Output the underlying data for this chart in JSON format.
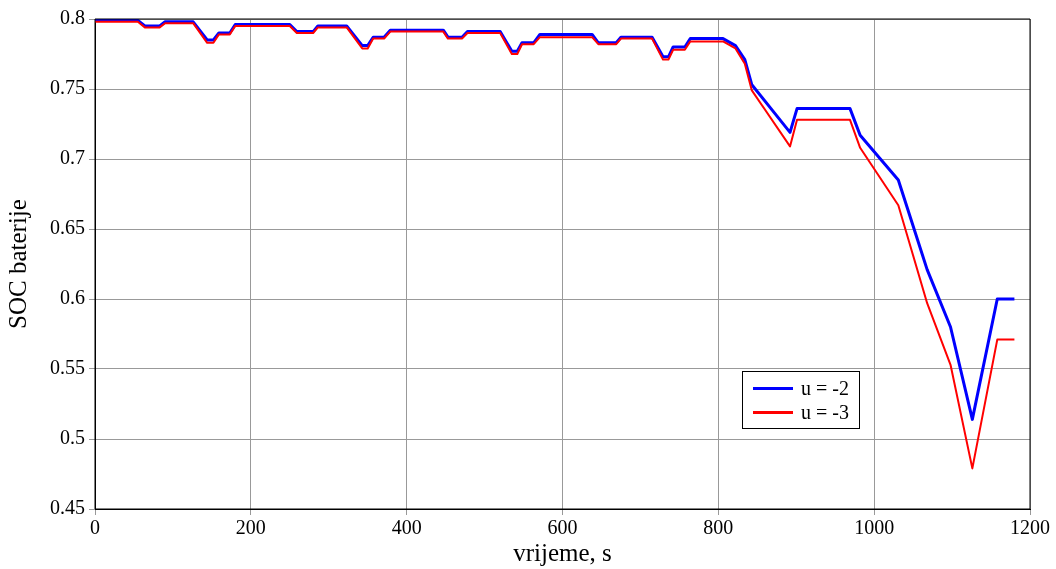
{
  "chart_data": {
    "type": "line",
    "xlabel": "vrijeme, s",
    "ylabel": "SOC baterije",
    "x": [
      0,
      55,
      64,
      83,
      90,
      126,
      144,
      152,
      159,
      173,
      180,
      250,
      259,
      280,
      286,
      323,
      343,
      350,
      357,
      371,
      379,
      447,
      453,
      471,
      478,
      520,
      535,
      542,
      548,
      563,
      571,
      638,
      646,
      669,
      675,
      715,
      729,
      736,
      742,
      757,
      764,
      806,
      822,
      834,
      843,
      892,
      901,
      969,
      982,
      1031,
      1068,
      1098,
      1126,
      1158,
      1180
    ],
    "series": [
      {
        "name": "u = -2",
        "color": "#0000ff",
        "values": [
          0.799,
          0.799,
          0.795,
          0.795,
          0.798,
          0.798,
          0.785,
          0.785,
          0.79,
          0.79,
          0.796,
          0.796,
          0.791,
          0.791,
          0.795,
          0.795,
          0.781,
          0.781,
          0.787,
          0.787,
          0.792,
          0.792,
          0.787,
          0.787,
          0.791,
          0.791,
          0.777,
          0.777,
          0.783,
          0.783,
          0.789,
          0.789,
          0.783,
          0.783,
          0.787,
          0.787,
          0.773,
          0.773,
          0.78,
          0.78,
          0.786,
          0.786,
          0.781,
          0.771,
          0.753,
          0.719,
          0.736,
          0.736,
          0.717,
          0.685,
          0.621,
          0.58,
          0.514,
          0.6,
          0.6
        ]
      },
      {
        "name": "u = -3",
        "color": "#ff0000",
        "values": [
          0.798,
          0.798,
          0.794,
          0.794,
          0.797,
          0.797,
          0.783,
          0.783,
          0.789,
          0.789,
          0.795,
          0.795,
          0.79,
          0.79,
          0.794,
          0.794,
          0.779,
          0.779,
          0.786,
          0.786,
          0.791,
          0.791,
          0.786,
          0.786,
          0.79,
          0.79,
          0.775,
          0.775,
          0.782,
          0.782,
          0.787,
          0.787,
          0.782,
          0.782,
          0.786,
          0.786,
          0.771,
          0.771,
          0.778,
          0.778,
          0.784,
          0.784,
          0.779,
          0.768,
          0.749,
          0.709,
          0.728,
          0.728,
          0.708,
          0.667,
          0.597,
          0.553,
          0.479,
          0.571,
          0.571
        ]
      }
    ],
    "xlim": [
      0,
      1200
    ],
    "xticks": [
      0,
      200,
      400,
      600,
      800,
      1000,
      1200
    ],
    "ylim": [
      0.45,
      0.8
    ],
    "yticks": [
      0.45,
      0.5,
      0.55,
      0.6,
      0.65,
      0.7,
      0.75,
      0.8
    ],
    "grid": true,
    "legend": "bottom right",
    "marker": "none",
    "line_style": "solid"
  }
}
